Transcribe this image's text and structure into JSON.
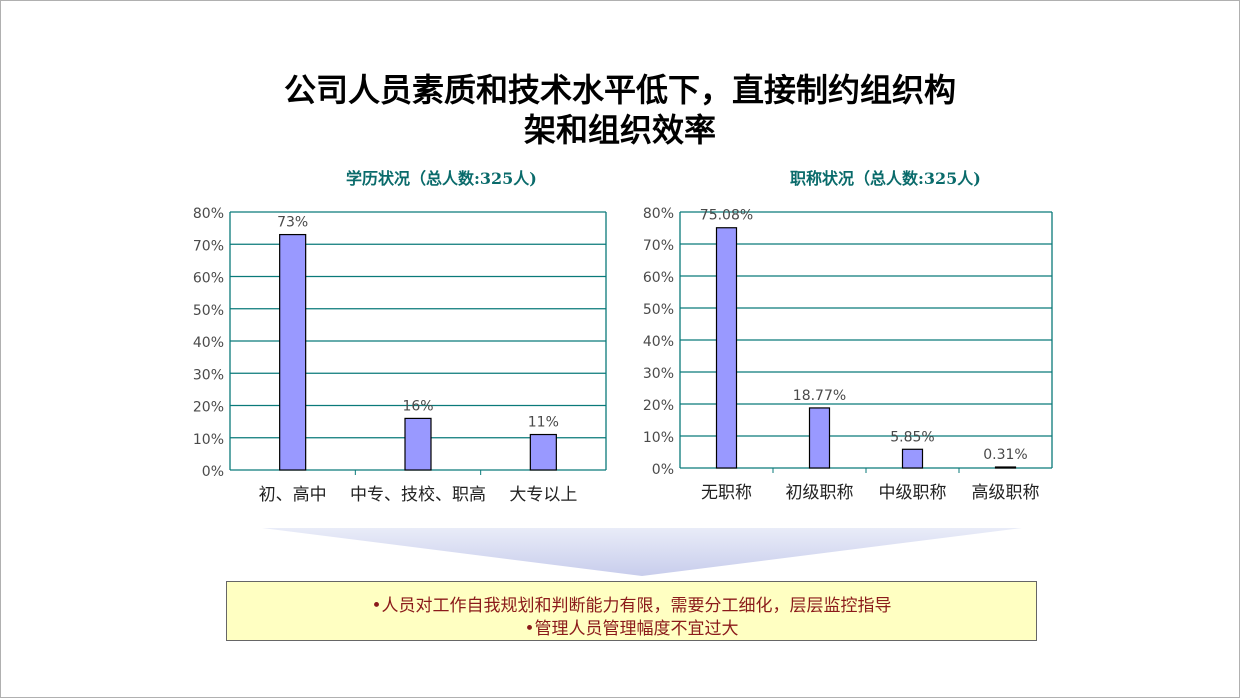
{
  "title_line1": "公司人员素质和技术水平低下，直接制约组织构",
  "title_line2": "架和组织效率",
  "colors": {
    "bar": "#9999ff",
    "bar_stroke": "#000000",
    "grid": "#0a7a7a",
    "axis_text": "#4a4a4a",
    "chart_title": "#0a6b6b",
    "note_text": "#8b1a1a",
    "note_bg": "#ffffc2"
  },
  "chart_data": [
    {
      "type": "bar",
      "title": "学历状况（总人数:325人)",
      "categories": [
        "初、高中",
        "中专、技校、职高",
        "大专以上"
      ],
      "values": [
        73,
        16,
        11
      ],
      "data_labels": [
        "73%",
        "16%",
        "11%"
      ],
      "ylim": [
        0,
        80
      ],
      "yticks": [
        "0%",
        "10%",
        "20%",
        "30%",
        "40%",
        "50%",
        "60%",
        "70%",
        "80%"
      ],
      "grid": true
    },
    {
      "type": "bar",
      "title": "职称状况（总人数:325人)",
      "categories": [
        "无职称",
        "初级职称",
        "中级职称",
        "高级职称"
      ],
      "values": [
        75.08,
        18.77,
        5.85,
        0.31
      ],
      "data_labels": [
        "75.08%",
        "18.77%",
        "5.85%",
        "0.31%"
      ],
      "ylim": [
        0,
        80
      ],
      "yticks": [
        "0%",
        "10%",
        "20%",
        "30%",
        "40%",
        "50%",
        "60%",
        "70%",
        "80%"
      ],
      "grid": true
    }
  ],
  "notes": {
    "line1": "•人员对工作自我规划和判断能力有限，需要分工细化，层层监控指导",
    "line2": "•管理人员管理幅度不宜过大"
  }
}
